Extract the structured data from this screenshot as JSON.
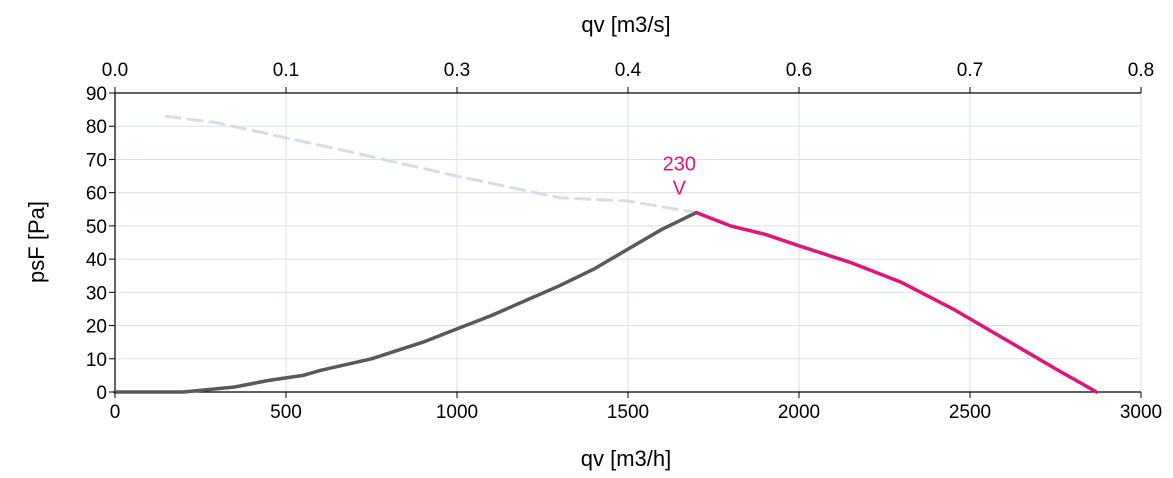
{
  "chart_data": {
    "type": "line",
    "top_axis": {
      "label": "qv [m3/s]",
      "ticks": [
        "0.0",
        "0.1",
        "0.3",
        "0.4",
        "0.6",
        "0.7",
        "0.8"
      ],
      "tick_positions_m3h": [
        0,
        500,
        1000,
        1500,
        2000,
        2500,
        3000
      ]
    },
    "xlabel": "qv [m3/h]",
    "ylabel": "psF [Pa]",
    "xlim": [
      0,
      3000
    ],
    "ylim": [
      0,
      90
    ],
    "xticks": [
      "0",
      "500",
      "1000",
      "1500",
      "2000",
      "2500",
      "3000"
    ],
    "yticks": [
      "0",
      "10",
      "20",
      "30",
      "40",
      "50",
      "60",
      "70",
      "80",
      "90"
    ],
    "grid": true,
    "annotation": {
      "line1": "230",
      "line2": "V",
      "color": "#e0147c",
      "anchor": [
        1650,
        54
      ]
    },
    "series": [
      {
        "role": "unstable",
        "style": "dashed",
        "color": "#d5dce6",
        "points": [
          [
            150,
            83
          ],
          [
            300,
            81
          ],
          [
            500,
            76.5
          ],
          [
            700,
            72
          ],
          [
            1000,
            65
          ],
          [
            1300,
            58.5
          ],
          [
            1500,
            57.5
          ],
          [
            1700,
            54
          ]
        ]
      },
      {
        "role": "system",
        "style": "solid",
        "color": "#595959",
        "points": [
          [
            0,
            0
          ],
          [
            200,
            0
          ],
          [
            350,
            1.5
          ],
          [
            450,
            3.5
          ],
          [
            550,
            5
          ],
          [
            600,
            6.5
          ],
          [
            750,
            10
          ],
          [
            900,
            15
          ],
          [
            1000,
            19
          ],
          [
            1100,
            23
          ],
          [
            1200,
            27.5
          ],
          [
            1300,
            32
          ],
          [
            1400,
            37
          ],
          [
            1500,
            43
          ],
          [
            1600,
            49
          ],
          [
            1700,
            54
          ]
        ]
      },
      {
        "name": "230 V",
        "role": "operating",
        "style": "solid",
        "color": "#e0147c",
        "points": [
          [
            1700,
            54
          ],
          [
            1800,
            50
          ],
          [
            1900,
            47.5
          ],
          [
            2000,
            44
          ],
          [
            2150,
            39
          ],
          [
            2300,
            33
          ],
          [
            2450,
            25
          ],
          [
            2600,
            16
          ],
          [
            2750,
            7
          ],
          [
            2870,
            0
          ]
        ]
      }
    ]
  }
}
